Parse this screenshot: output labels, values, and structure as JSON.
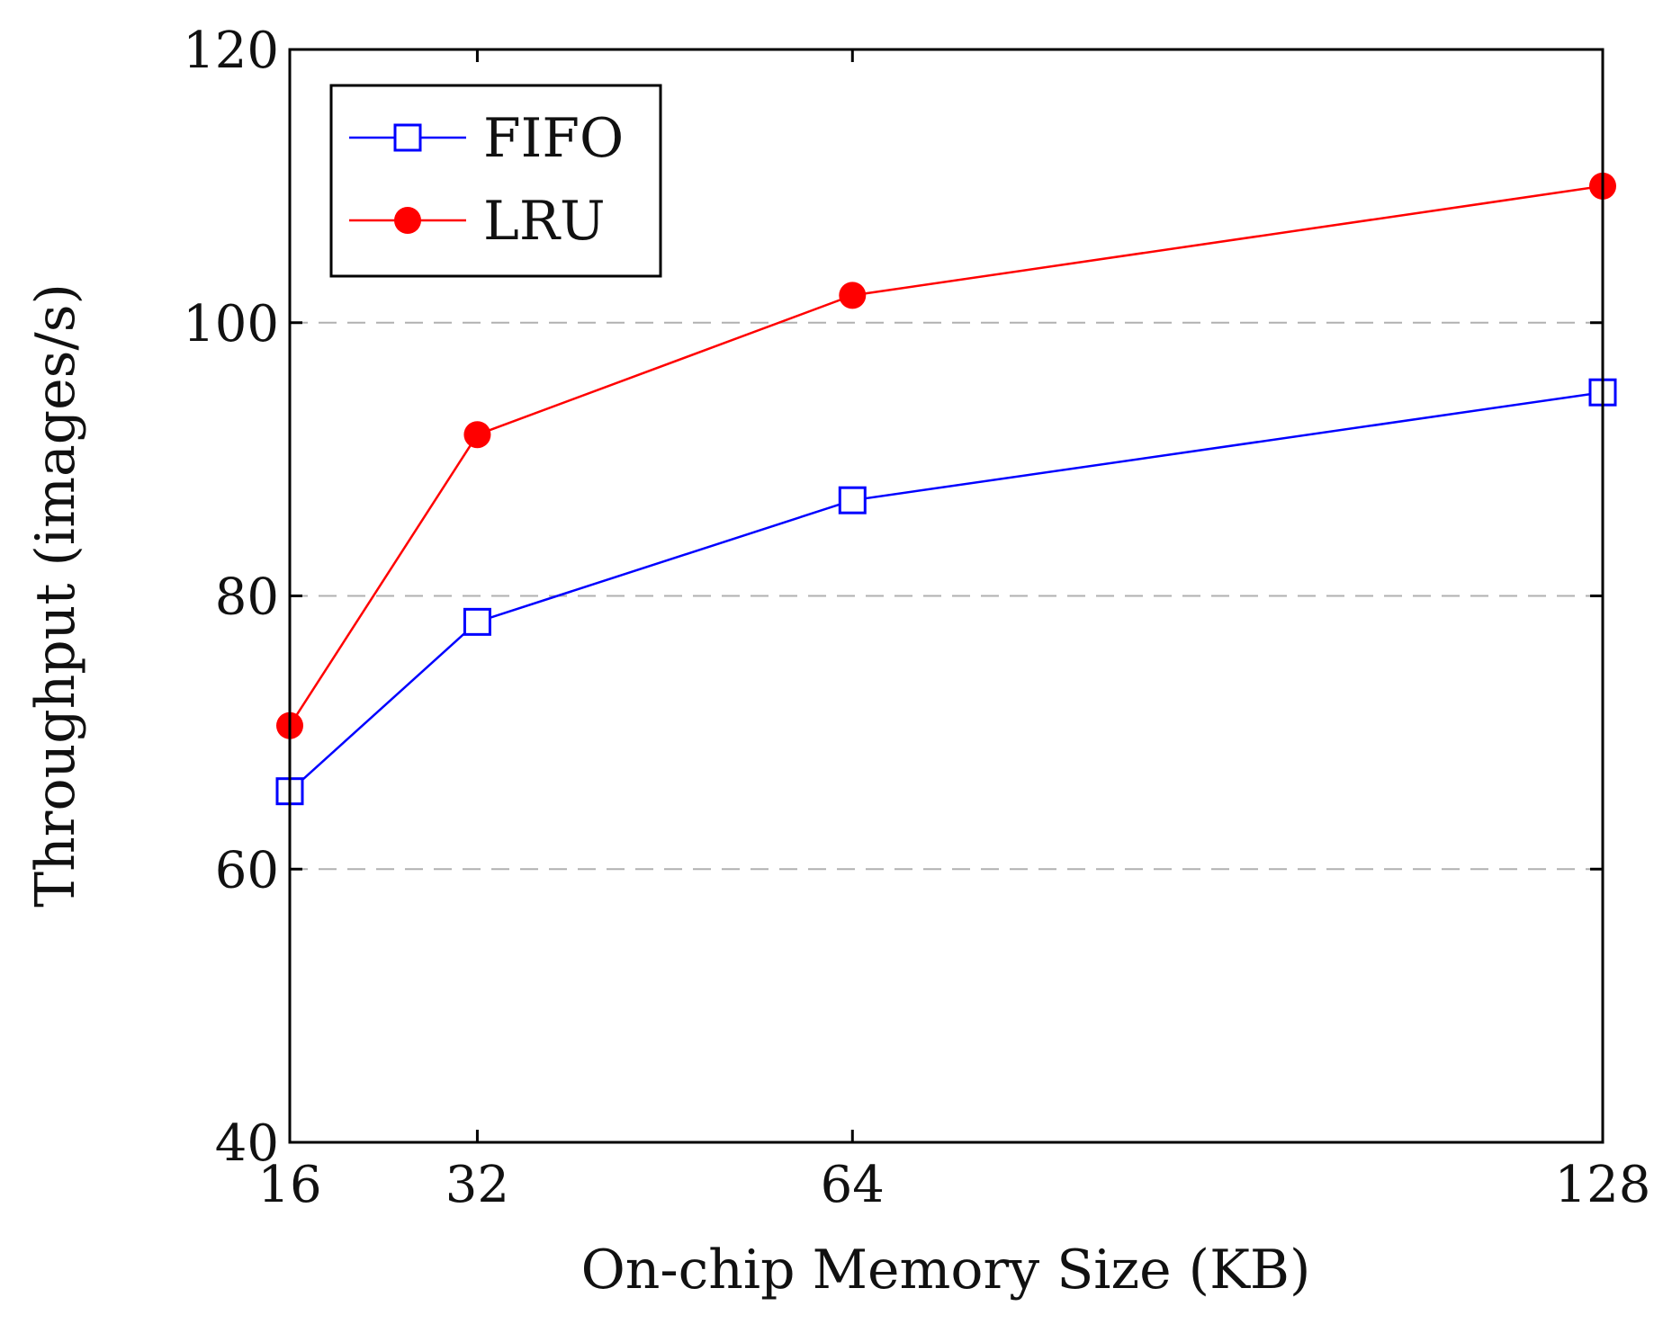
{
  "chart_data": {
    "type": "line",
    "title": "",
    "xlabel": "On-chip Memory Size (KB)",
    "ylabel": "Throughput (images/s)",
    "x": [
      16,
      32,
      64,
      128
    ],
    "x_tick_labels": [
      "16",
      "32",
      "64",
      "128"
    ],
    "xlim": [
      16,
      128
    ],
    "ylim": [
      40,
      120
    ],
    "y_ticks": [
      40,
      60,
      80,
      100,
      120
    ],
    "y_tick_labels": [
      "40",
      "60",
      "80",
      "100",
      "120"
    ],
    "grid": "dashed horizontal",
    "legend_position": "top-left",
    "series": [
      {
        "name": "FIFO",
        "values": [
          65.7,
          78.1,
          87.0,
          94.9
        ],
        "color": "#0000ff",
        "marker": "open-square"
      },
      {
        "name": "LRU",
        "values": [
          70.5,
          91.8,
          102.0,
          110.0
        ],
        "color": "#ff0000",
        "marker": "filled-circle"
      }
    ]
  }
}
